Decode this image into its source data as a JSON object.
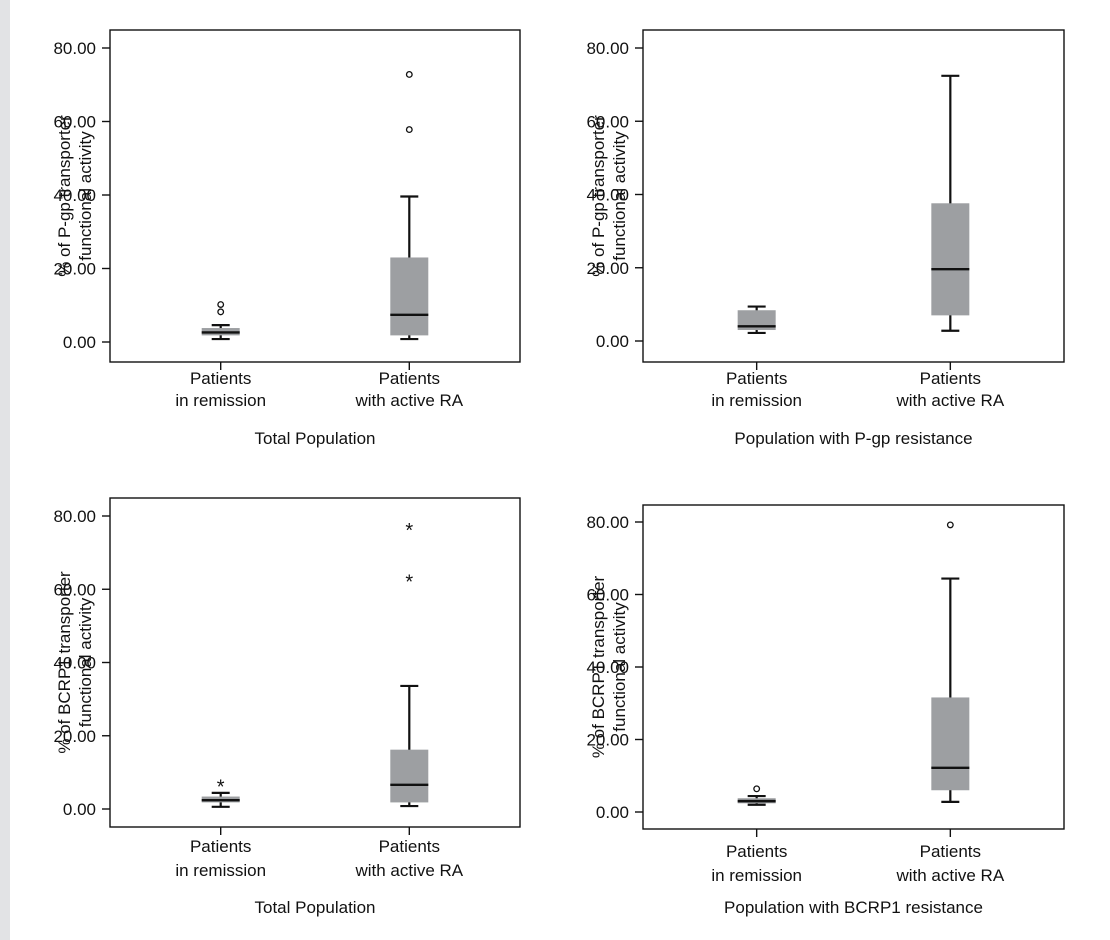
{
  "colors": {
    "box_fill": "#9d9fa2",
    "line": "#111111",
    "background": "#e2e3e5",
    "panel": "#ffffff"
  },
  "chart_data": [
    {
      "type": "box",
      "ylabel": [
        "% of P-gp transporter",
        "functional activity"
      ],
      "xlabel": "Total Population",
      "ylim": [
        0,
        80
      ],
      "yticks": [
        "0.00",
        "20.00",
        "40.00",
        "60.00",
        "80.00"
      ],
      "categories": [
        {
          "label": [
            "Patients",
            "in remission"
          ],
          "min": 0.8,
          "q1": 1.8,
          "median": 2.6,
          "q3": 3.8,
          "max": 4.6,
          "outliers": [
            8.2,
            10.2
          ],
          "outlier_marker": "circle"
        },
        {
          "label": [
            "Patients",
            "with active RA"
          ],
          "min": 0.8,
          "q1": 1.8,
          "median": 7.4,
          "q3": 23.0,
          "max": 39.6,
          "outliers": [
            57.8,
            72.8
          ],
          "outlier_marker": "circle"
        }
      ]
    },
    {
      "type": "box",
      "ylabel": [
        "% of P-gp transporter",
        "functional activity"
      ],
      "xlabel": "Population with P-gp resistance",
      "ylim": [
        0,
        80
      ],
      "yticks": [
        "0.00",
        "20.00",
        "40.00",
        "60.00",
        "80.00"
      ],
      "categories": [
        {
          "label": [
            "Patients",
            "in remission"
          ],
          "min": 2.2,
          "q1": 3.0,
          "median": 4.0,
          "q3": 8.4,
          "max": 9.4,
          "outliers": [],
          "outlier_marker": "circle"
        },
        {
          "label": [
            "Patients",
            "with active RA"
          ],
          "min": 2.8,
          "q1": 7.0,
          "median": 19.6,
          "q3": 37.6,
          "max": 72.4,
          "outliers": [],
          "outlier_marker": "circle"
        }
      ]
    },
    {
      "type": "box",
      "ylabel": [
        "% of BCRP1 transporter",
        "functional activity"
      ],
      "xlabel": "Total Population",
      "ylim": [
        0,
        80
      ],
      "yticks": [
        "0.00",
        "20.00",
        "40.00",
        "60.00",
        "80.00"
      ],
      "categories": [
        {
          "label": [
            "Patients",
            "in remission"
          ],
          "min": 0.6,
          "q1": 1.8,
          "median": 2.4,
          "q3": 3.4,
          "max": 4.4,
          "outliers": [
            7.0
          ],
          "outlier_marker": "star"
        },
        {
          "label": [
            "Patients",
            "with active RA"
          ],
          "min": 0.8,
          "q1": 1.8,
          "median": 6.6,
          "q3": 16.2,
          "max": 33.6,
          "outliers": [
            63.0,
            77.0
          ],
          "outlier_marker": "star"
        }
      ]
    },
    {
      "type": "box",
      "ylabel": [
        "% of BCRP1 transporter",
        "functional activity"
      ],
      "xlabel": "Population with BCRP1 resistance",
      "ylim": [
        0,
        80
      ],
      "yticks": [
        "0.00",
        "20.00",
        "40.00",
        "60.00",
        "80.00"
      ],
      "categories": [
        {
          "label": [
            "Patients",
            "in remission"
          ],
          "min": 2.0,
          "q1": 2.4,
          "median": 3.0,
          "q3": 3.8,
          "max": 4.4,
          "outliers": [
            6.4
          ],
          "outlier_marker": "circle"
        },
        {
          "label": [
            "Patients",
            "with active RA"
          ],
          "min": 2.8,
          "q1": 6.0,
          "median": 12.2,
          "q3": 31.6,
          "max": 64.4,
          "outliers": [
            79.2
          ],
          "outlier_marker": "circle"
        }
      ]
    }
  ]
}
